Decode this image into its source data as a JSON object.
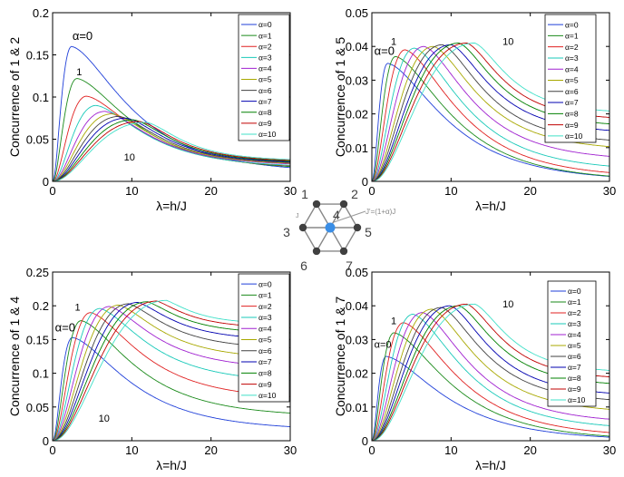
{
  "legend_entries": [
    "α=0",
    "α=1",
    "α=2",
    "α=3",
    "α=4",
    "α=5",
    "α=6",
    "α=7",
    "α=8",
    "α=9",
    "α=10"
  ],
  "series_colors": [
    "#1f3fd9",
    "#1a8a1a",
    "#e02020",
    "#19c9b9",
    "#a020d0",
    "#a8a800",
    "#404040",
    "#0000b0",
    "#008000",
    "#c00000",
    "#40e0c8"
  ],
  "chart_data": [
    {
      "type": "line",
      "title": "",
      "xlabel": "λ=h/J",
      "ylabel": "Concurrence of 1 & 2",
      "xlim": [
        0,
        30
      ],
      "ylim": [
        0,
        0.2
      ],
      "xticks": [
        "0",
        "10",
        "20",
        "30"
      ],
      "yticks": [
        "0",
        "0.05",
        "0.1",
        "0.15",
        "0.2"
      ],
      "legend_position": "top-right",
      "annotations": [
        {
          "text": "α=0",
          "x": 2.5,
          "y": 0.168
        },
        {
          "text": "1",
          "x": 3.0,
          "y": 0.126
        },
        {
          "text": "10",
          "x": 9.0,
          "y": 0.025
        }
      ],
      "series": [
        {
          "name": "α=0",
          "peak_x": 2.4,
          "peak_y": 0.16,
          "tail_y": 0.01
        },
        {
          "name": "α=1",
          "peak_x": 3.1,
          "peak_y": 0.122,
          "tail_y": 0.013
        },
        {
          "name": "α=2",
          "peak_x": 4.3,
          "peak_y": 0.101,
          "tail_y": 0.015
        },
        {
          "name": "α=3",
          "peak_x": 5.5,
          "peak_y": 0.09,
          "tail_y": 0.016
        },
        {
          "name": "α=4",
          "peak_x": 6.6,
          "peak_y": 0.083,
          "tail_y": 0.018
        },
        {
          "name": "α=5",
          "peak_x": 7.5,
          "peak_y": 0.08,
          "tail_y": 0.019
        },
        {
          "name": "α=6",
          "peak_x": 8.4,
          "peak_y": 0.077,
          "tail_y": 0.02
        },
        {
          "name": "α=7",
          "peak_x": 9.3,
          "peak_y": 0.075,
          "tail_y": 0.021
        },
        {
          "name": "α=8",
          "peak_x": 10.2,
          "peak_y": 0.073,
          "tail_y": 0.022
        },
        {
          "name": "α=9",
          "peak_x": 11.0,
          "peak_y": 0.071,
          "tail_y": 0.023
        },
        {
          "name": "α=10",
          "peak_x": 11.8,
          "peak_y": 0.07,
          "tail_y": 0.024
        }
      ]
    },
    {
      "type": "line",
      "title": "",
      "xlabel": "λ=h/J",
      "ylabel": "Concurrence of 1 & 5",
      "xlim": [
        0,
        30
      ],
      "ylim": [
        0,
        0.05
      ],
      "xticks": [
        "0",
        "10",
        "20",
        "30"
      ],
      "yticks": [
        "0",
        "0.01",
        "0.02",
        "0.03",
        "0.04",
        "0.05"
      ],
      "legend_position": "top-right",
      "annotations": [
        {
          "text": "α=0",
          "x": 0.3,
          "y": 0.0375
        },
        {
          "text": "1",
          "x": 2.4,
          "y": 0.0405
        },
        {
          "text": "10",
          "x": 16.5,
          "y": 0.0405
        }
      ],
      "series": [
        {
          "name": "α=0",
          "peak_x": 2.0,
          "peak_y": 0.035,
          "tail_y": 0.0
        },
        {
          "name": "α=1",
          "peak_x": 3.0,
          "peak_y": 0.037,
          "tail_y": 0.0
        },
        {
          "name": "α=2",
          "peak_x": 4.2,
          "peak_y": 0.039,
          "tail_y": 0.001
        },
        {
          "name": "α=3",
          "peak_x": 5.4,
          "peak_y": 0.0395,
          "tail_y": 0.003
        },
        {
          "name": "α=4",
          "peak_x": 6.6,
          "peak_y": 0.04,
          "tail_y": 0.006
        },
        {
          "name": "α=5",
          "peak_x": 7.8,
          "peak_y": 0.04,
          "tail_y": 0.009
        },
        {
          "name": "α=6",
          "peak_x": 8.9,
          "peak_y": 0.0405,
          "tail_y": 0.011
        },
        {
          "name": "α=7",
          "peak_x": 10.0,
          "peak_y": 0.0405,
          "tail_y": 0.014
        },
        {
          "name": "α=8",
          "peak_x": 11.0,
          "peak_y": 0.041,
          "tail_y": 0.016
        },
        {
          "name": "α=9",
          "peak_x": 12.0,
          "peak_y": 0.041,
          "tail_y": 0.018
        },
        {
          "name": "α=10",
          "peak_x": 13.0,
          "peak_y": 0.041,
          "tail_y": 0.02
        }
      ]
    },
    {
      "type": "line",
      "title": "",
      "xlabel": "λ=h/J",
      "ylabel": "Concurrence of 1 & 4",
      "xlim": [
        0,
        30
      ],
      "ylim": [
        0,
        0.25
      ],
      "xticks": [
        "0",
        "10",
        "20",
        "30"
      ],
      "yticks": [
        "0",
        "0.05",
        "0.1",
        "0.15",
        "0.2",
        "0.25"
      ],
      "legend_position": "top-right",
      "annotations": [
        {
          "text": "α=0",
          "x": 0.3,
          "y": 0.162
        },
        {
          "text": "1",
          "x": 2.8,
          "y": 0.193
        },
        {
          "text": "10",
          "x": 5.8,
          "y": 0.028
        }
      ],
      "series": [
        {
          "name": "α=0",
          "peak_x": 2.5,
          "peak_y": 0.153,
          "tail_y": 0.015
        },
        {
          "name": "α=1",
          "peak_x": 3.6,
          "peak_y": 0.178,
          "tail_y": 0.035
        },
        {
          "name": "α=2",
          "peak_x": 4.8,
          "peak_y": 0.19,
          "tail_y": 0.06
        },
        {
          "name": "α=3",
          "peak_x": 6.0,
          "peak_y": 0.196,
          "tail_y": 0.085
        },
        {
          "name": "α=4",
          "peak_x": 7.2,
          "peak_y": 0.199,
          "tail_y": 0.105
        },
        {
          "name": "α=5",
          "peak_x": 8.4,
          "peak_y": 0.201,
          "tail_y": 0.12
        },
        {
          "name": "α=6",
          "peak_x": 9.6,
          "peak_y": 0.203,
          "tail_y": 0.135
        },
        {
          "name": "α=7",
          "peak_x": 10.8,
          "peak_y": 0.205,
          "tail_y": 0.148
        },
        {
          "name": "α=8",
          "peak_x": 12.0,
          "peak_y": 0.206,
          "tail_y": 0.158
        },
        {
          "name": "α=9",
          "peak_x": 13.2,
          "peak_y": 0.207,
          "tail_y": 0.166
        },
        {
          "name": "α=10",
          "peak_x": 14.4,
          "peak_y": 0.208,
          "tail_y": 0.172
        }
      ]
    },
    {
      "type": "line",
      "title": "",
      "xlabel": "λ=h/J",
      "ylabel": "Concurrence of 1 & 7",
      "xlim": [
        0,
        30
      ],
      "ylim": [
        0,
        0.05
      ],
      "xticks": [
        "0",
        "10",
        "20",
        "30"
      ],
      "yticks": [
        "0",
        "0.01",
        "0.02",
        "0.03",
        "0.04",
        "0.05"
      ],
      "legend_position": "top-right",
      "annotations": [
        {
          "text": "α=0",
          "x": 0.3,
          "y": 0.0275
        },
        {
          "text": "1",
          "x": 2.4,
          "y": 0.0345
        },
        {
          "text": "10",
          "x": 16.5,
          "y": 0.0395
        }
      ],
      "series": [
        {
          "name": "α=0",
          "peak_x": 1.8,
          "peak_y": 0.025,
          "tail_y": 0.0
        },
        {
          "name": "α=1",
          "peak_x": 2.8,
          "peak_y": 0.032,
          "tail_y": 0.0
        },
        {
          "name": "α=2",
          "peak_x": 4.0,
          "peak_y": 0.035,
          "tail_y": 0.001
        },
        {
          "name": "α=3",
          "peak_x": 5.2,
          "peak_y": 0.0375,
          "tail_y": 0.003
        },
        {
          "name": "α=4",
          "peak_x": 6.4,
          "peak_y": 0.038,
          "tail_y": 0.005
        },
        {
          "name": "α=5",
          "peak_x": 7.6,
          "peak_y": 0.039,
          "tail_y": 0.008
        },
        {
          "name": "α=6",
          "peak_x": 8.8,
          "peak_y": 0.0395,
          "tail_y": 0.011
        },
        {
          "name": "α=7",
          "peak_x": 9.9,
          "peak_y": 0.04,
          "tail_y": 0.013
        },
        {
          "name": "α=8",
          "peak_x": 11.0,
          "peak_y": 0.04,
          "tail_y": 0.016
        },
        {
          "name": "α=9",
          "peak_x": 12.0,
          "peak_y": 0.0405,
          "tail_y": 0.018
        },
        {
          "name": "α=10",
          "peak_x": 13.0,
          "peak_y": 0.0405,
          "tail_y": 0.02
        }
      ]
    }
  ],
  "lattice_diagram": {
    "site_labels": [
      "1",
      "2",
      "3",
      "4",
      "5",
      "6",
      "7"
    ],
    "coupling_label": "J'=(1+α)J",
    "bond_label": "J",
    "center_color": "#3a8ee6",
    "site_color": "#404040"
  }
}
